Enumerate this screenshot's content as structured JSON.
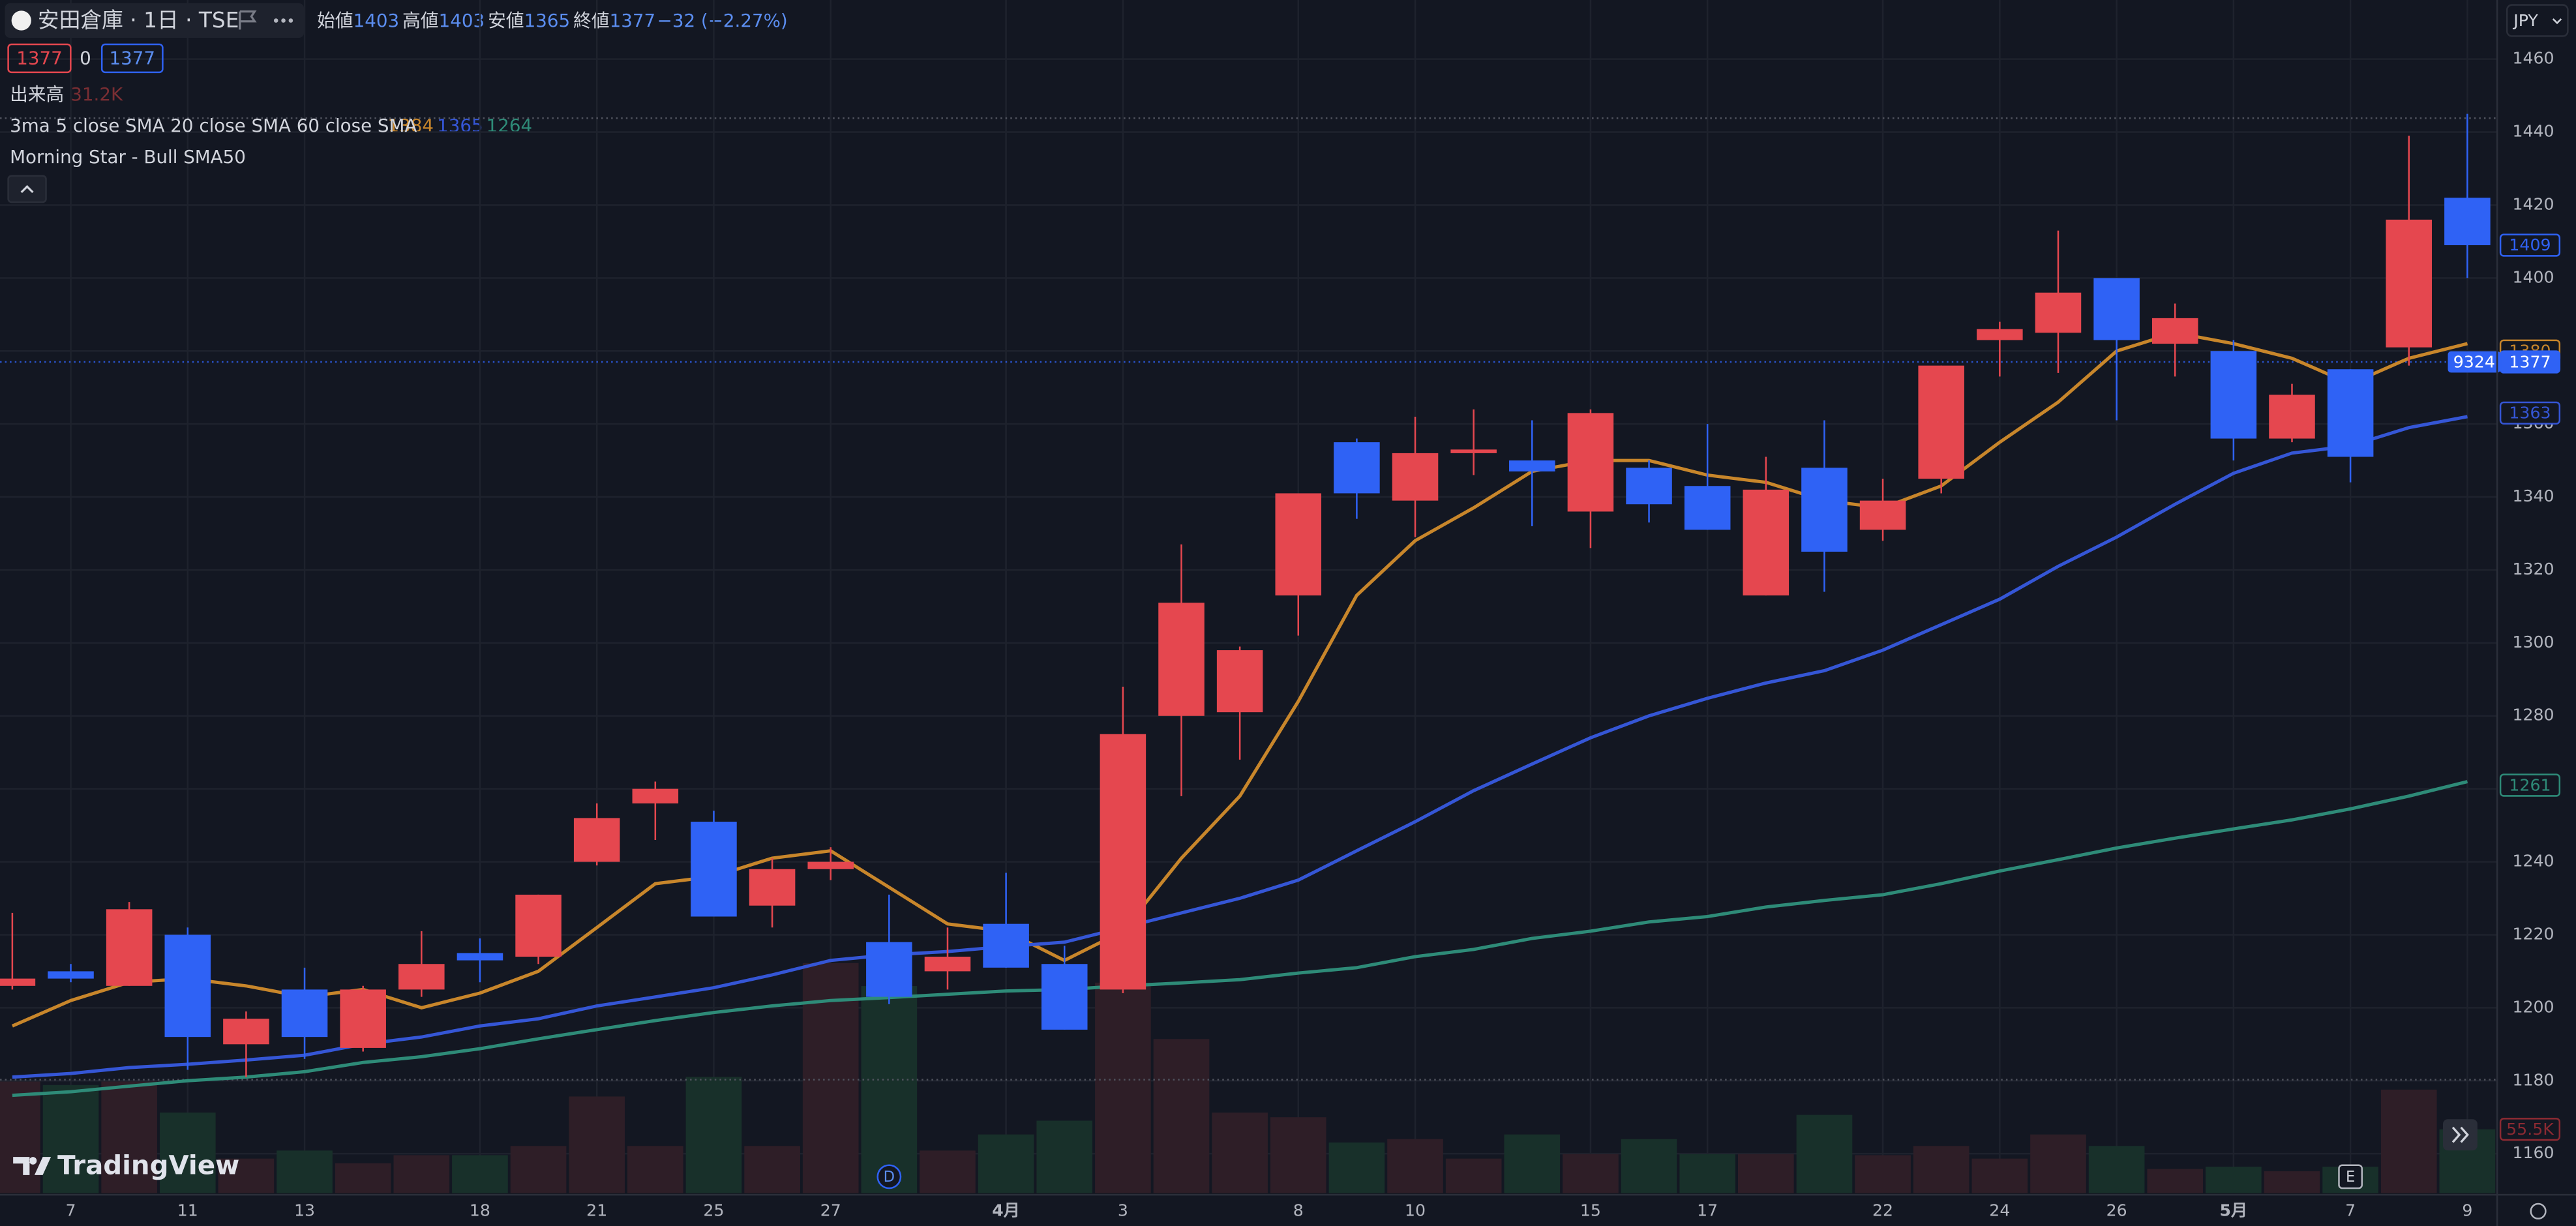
{
  "header": {
    "symbol": "安田倉庫 · 1日 · TSE",
    "ohlc": [
      {
        "label": "始値",
        "value": 1403
      },
      {
        "label": "高値",
        "value": 1403
      },
      {
        "label": "安値",
        "value": 1365
      },
      {
        "label": "終値",
        "value": 1377
      }
    ],
    "change": "−32 (−2.27%)",
    "bid": 1377,
    "spread": 0,
    "ask": 1377,
    "volume_label": "出来高",
    "volume_value": "31.2K",
    "indicator": "3ma 5 close SMA 20 close SMA 60 close SMA",
    "indicator2": "Morning Star - Bull SMA50",
    "currency": "JPY",
    "brand": "TradingView"
  },
  "chart_data": {
    "type": "candlestick",
    "categories": [
      null,
      "7",
      null,
      "11",
      null,
      "13",
      null,
      null,
      "18",
      null,
      "21",
      null,
      "25",
      null,
      "27",
      null,
      null,
      "4月",
      null,
      "3",
      null,
      null,
      "8",
      null,
      "10",
      null,
      null,
      "15",
      null,
      "17",
      null,
      null,
      "22",
      null,
      "24",
      null,
      "26",
      null,
      "5月",
      null,
      "7",
      null,
      "9"
    ],
    "open": [
      1206,
      1210,
      1206,
      1220,
      1190,
      1205,
      1189,
      1205,
      1215,
      1214,
      1240,
      1256,
      1251,
      1228,
      1238,
      1218,
      1210,
      1223,
      1212,
      1205,
      1280,
      1281,
      1313,
      1355,
      1339,
      1352,
      1350,
      1336,
      1348,
      1343,
      1313,
      1348,
      1331,
      1345,
      1383,
      1385,
      1400,
      1382,
      1380,
      1356,
      1375,
      1381,
      1422
    ],
    "high": [
      1226,
      1212,
      1229,
      1222,
      1199,
      1211,
      1206,
      1221,
      1219,
      1231,
      1256,
      1262,
      1254,
      1241,
      1244,
      1231,
      1222,
      1237,
      1217,
      1288,
      1327,
      1299,
      1341,
      1356,
      1362,
      1364,
      1361,
      1364,
      1350,
      1360,
      1351,
      1361,
      1345,
      1376,
      1388,
      1413,
      1400,
      1393,
      1383,
      1371,
      1375,
      1439,
      1445
    ],
    "low": [
      1205,
      1207,
      1206,
      1183,
      1181,
      1186,
      1188,
      1203,
      1207,
      1212,
      1239,
      1246,
      1225,
      1222,
      1235,
      1201,
      1205,
      1211,
      1194,
      1204,
      1258,
      1268,
      1302,
      1334,
      1329,
      1346,
      1332,
      1326,
      1333,
      1331,
      1313,
      1314,
      1328,
      1341,
      1373,
      1374,
      1361,
      1373,
      1350,
      1355,
      1344,
      1376,
      1400
    ],
    "close": [
      1208,
      1208,
      1227,
      1192,
      1197,
      1192,
      1205,
      1212,
      1213,
      1231,
      1252,
      1260,
      1225,
      1238,
      1240,
      1203,
      1214,
      1211,
      1194,
      1275,
      1311,
      1298,
      1341,
      1341,
      1352,
      1353,
      1347,
      1363,
      1338,
      1331,
      1342,
      1325,
      1339,
      1376,
      1386,
      1396,
      1383,
      1389,
      1356,
      1368,
      1351,
      1416,
      1409
    ],
    "up_color": "#e5474f",
    "down_color": "#2f62f5",
    "volume": {
      "values": [
        97000,
        94000,
        97000,
        70000,
        30000,
        37000,
        26000,
        33000,
        33000,
        41000,
        84000,
        41000,
        101000,
        41000,
        200000,
        180000,
        37000,
        51000,
        63000,
        183000,
        134000,
        70000,
        66000,
        44000,
        47000,
        30000,
        51000,
        34000,
        47000,
        34000,
        34000,
        68000,
        33000,
        41000,
        30000,
        51000,
        41000,
        21000,
        23000,
        19000,
        23000,
        90000,
        55500
      ],
      "ylim": [
        0,
        200000
      ],
      "up_color": "#2e1e27",
      "down_color": "#18302a",
      "last_label": {
        "value": 55500,
        "label": "55.5K"
      },
      "last_color": "#8a2a32"
    },
    "series": [
      {
        "color": "#c8862b",
        "legend_value": 1384,
        "last_label": 1380,
        "values": [
          1195,
          1202,
          1207,
          1208,
          1206,
          1203,
          1205,
          1200,
          1204,
          1210,
          1222,
          1234,
          1236,
          1241,
          1243,
          1233,
          1223,
          1221,
          1213,
          1221,
          1241,
          1258,
          1284,
          1313,
          1328,
          1337,
          1347,
          1350,
          1350,
          1346,
          1344,
          1339,
          1337,
          1343,
          1355,
          1366,
          1380,
          1385,
          1382,
          1378,
          1371,
          1378,
          1382
        ]
      },
      {
        "color": "#3556d6",
        "legend_value": 1365,
        "last_label": 1363,
        "values": [
          1181,
          1182,
          1183.6,
          1184.5,
          1185.7,
          1187,
          1190,
          1192,
          1195,
          1197,
          1200.5,
          1203,
          1205.5,
          1209,
          1213,
          1214.5,
          1215.4,
          1216.8,
          1218,
          1222,
          1226,
          1230,
          1235,
          1243,
          1251,
          1259.5,
          1266.8,
          1274,
          1280,
          1284.8,
          1289,
          1292.4,
          1298,
          1305,
          1312,
          1321,
          1329,
          1338,
          1346.5,
          1352,
          1354,
          1359,
          1362
        ]
      },
      {
        "color": "#2e8b78",
        "legend_value": 1264,
        "last_label": 1261,
        "values": [
          1176,
          1177,
          1178.5,
          1180,
          1181,
          1182.5,
          1185,
          1186.6,
          1188.8,
          1191.5,
          1194,
          1196.5,
          1198.7,
          1200.5,
          1202,
          1202.8,
          1203.7,
          1204.6,
          1205,
          1206,
          1206.8,
          1207.7,
          1209.5,
          1211,
          1214,
          1216,
          1219,
          1221,
          1223.5,
          1225,
          1227.6,
          1229.4,
          1231,
          1234,
          1237.5,
          1240.6,
          1243.8,
          1246.5,
          1249,
          1251.5,
          1254.5,
          1258,
          1262
        ]
      }
    ],
    "price_tags": [
      {
        "value": 1409,
        "color": "#2f62f5",
        "filled": false
      },
      {
        "value": 1377,
        "color": "#2f62f5",
        "filled": true,
        "badge": "9324"
      }
    ],
    "reference_lines": [
      1443.8,
      1180.3
    ],
    "event_markers": [
      null,
      null,
      null,
      null,
      null,
      null,
      null,
      null,
      null,
      null,
      null,
      null,
      null,
      null,
      null,
      "D",
      null,
      null,
      null,
      null,
      null,
      null,
      null,
      null,
      null,
      null,
      null,
      null,
      null,
      null,
      null,
      null,
      null,
      null,
      null,
      null,
      null,
      null,
      null,
      null,
      "E",
      null,
      null
    ],
    "ylim": [
      1149.2,
      1476.2
    ],
    "yticks": [
      1160,
      1180,
      1200,
      1220,
      1240,
      1260,
      1280,
      1300,
      1320,
      1340,
      1360,
      1380,
      1400,
      1420,
      1440,
      1460
    ],
    "grid": true
  }
}
